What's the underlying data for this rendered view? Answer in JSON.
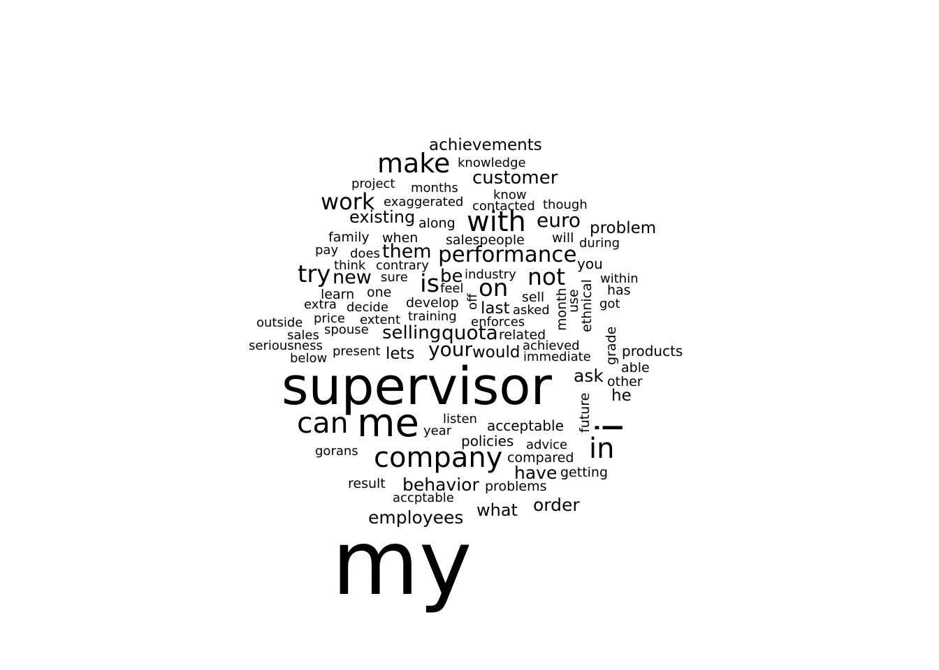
{
  "word_cloud": {
    "text_color": "#000000",
    "background_color": "#ffffff",
    "words": [
      "my",
      "supervisor",
      "i",
      "me",
      "company",
      "can",
      "with",
      "in",
      "make",
      "performance",
      "is",
      "on",
      "try",
      "not",
      "work",
      "quota",
      "your",
      "customer",
      "euro",
      "them",
      "selling",
      "behavior",
      "employees",
      "new",
      "order",
      "existing",
      "have",
      "what",
      "be",
      "problem",
      "ask",
      "lets",
      "achievements",
      "would",
      "last",
      "products",
      "acceptable",
      "he",
      "policies",
      "family",
      "when",
      "along",
      "month",
      "ethnical",
      "grade",
      "use",
      "future",
      "sell",
      "will",
      "you",
      "salespeople",
      "related",
      "develop",
      "knowledge",
      "months",
      "project",
      "exaggerated",
      "know",
      "contacted",
      "though",
      "during",
      "within",
      "has",
      "got",
      "able",
      "other",
      "learn",
      "one",
      "pay",
      "does",
      "think",
      "contrary",
      "sure",
      "extra",
      "decide",
      "outside",
      "price",
      "extent",
      "training",
      "enforces",
      "feel",
      "industry",
      "asked",
      "sales",
      "spouse",
      "seriousness",
      "present",
      "below",
      "achieved",
      "immediate",
      "off",
      "listen",
      "year",
      "advice",
      "gorans",
      "compared",
      "getting",
      "result",
      "accptable",
      "problems"
    ]
  }
}
